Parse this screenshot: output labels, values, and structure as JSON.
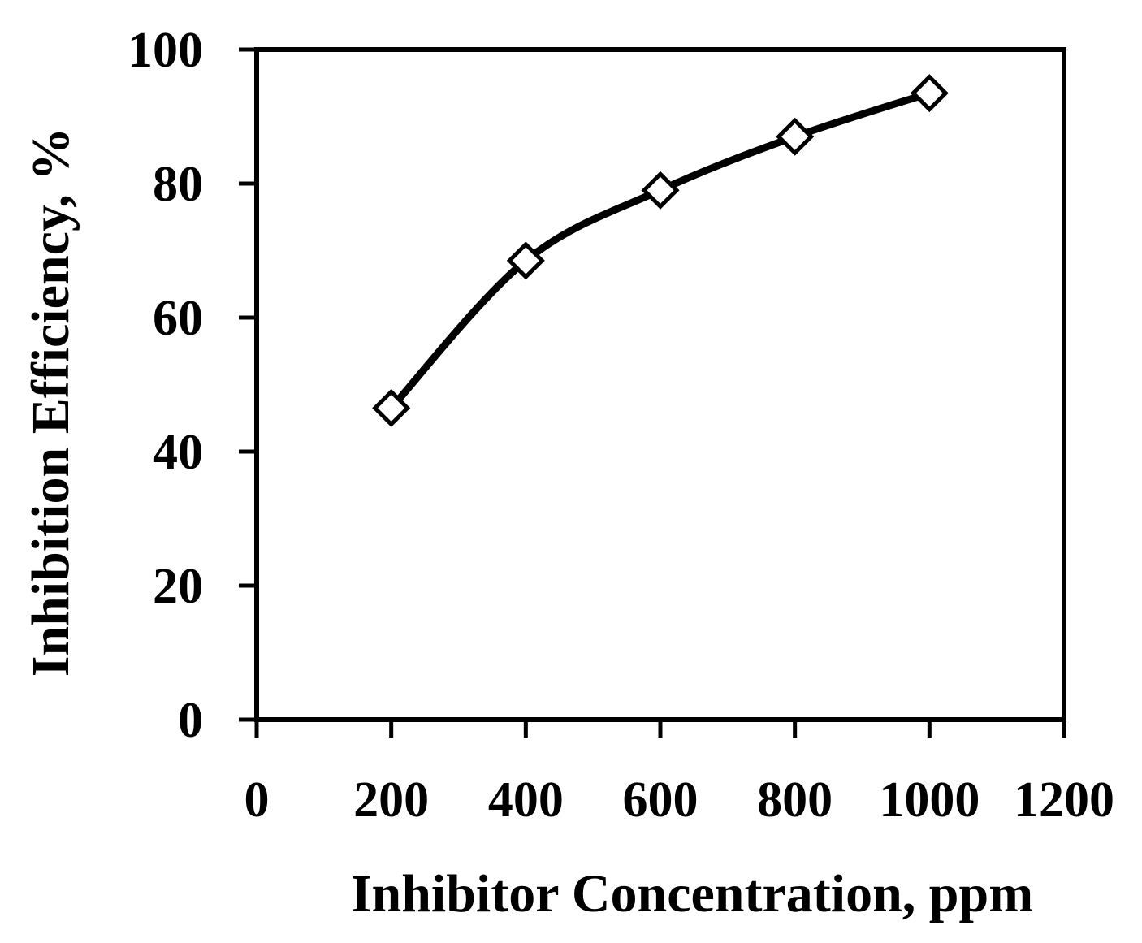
{
  "chart_data": {
    "type": "line",
    "title": "",
    "xlabel": "Inhibitor Concentration, ppm",
    "ylabel": "Inhibition Efficiency, %",
    "xlim": [
      0,
      1200
    ],
    "ylim": [
      0,
      100
    ],
    "xticks": [
      "0",
      "200",
      "400",
      "600",
      "800",
      "1000",
      "1200"
    ],
    "yticks": [
      "0",
      "20",
      "40",
      "60",
      "80",
      "100"
    ],
    "grid": false,
    "legend": "none",
    "series": [
      {
        "marker": "open-diamond",
        "color": "#000000",
        "x": [
          200,
          400,
          600,
          800,
          1000
        ],
        "y": [
          46.5,
          68.5,
          79,
          87,
          93.5
        ]
      }
    ]
  }
}
